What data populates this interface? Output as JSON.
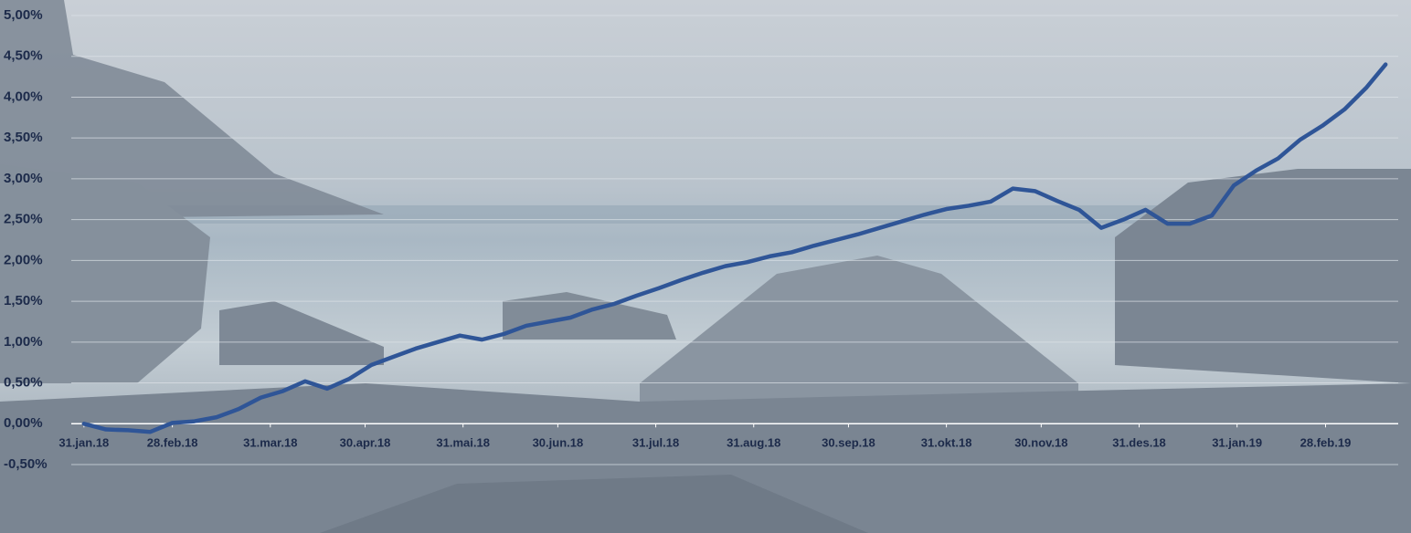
{
  "chart_data": {
    "type": "line",
    "x": [
      "2018-01-31",
      "2018-02-07",
      "2018-02-14",
      "2018-02-21",
      "2018-02-28",
      "2018-03-07",
      "2018-03-14",
      "2018-03-21",
      "2018-03-28",
      "2018-04-04",
      "2018-04-11",
      "2018-04-18",
      "2018-04-25",
      "2018-05-02",
      "2018-05-09",
      "2018-05-16",
      "2018-05-23",
      "2018-05-30",
      "2018-06-06",
      "2018-06-13",
      "2018-06-20",
      "2018-06-27",
      "2018-07-04",
      "2018-07-11",
      "2018-07-18",
      "2018-07-25",
      "2018-08-01",
      "2018-08-08",
      "2018-08-15",
      "2018-08-22",
      "2018-08-29",
      "2018-09-05",
      "2018-09-12",
      "2018-09-19",
      "2018-09-26",
      "2018-10-03",
      "2018-10-10",
      "2018-10-17",
      "2018-10-24",
      "2018-10-31",
      "2018-11-07",
      "2018-11-14",
      "2018-11-21",
      "2018-11-28",
      "2018-12-05",
      "2018-12-12",
      "2018-12-19",
      "2018-12-26",
      "2019-01-02",
      "2019-01-09",
      "2019-01-16",
      "2019-01-23",
      "2019-01-30",
      "2019-02-06",
      "2019-02-13",
      "2019-02-20",
      "2019-02-27",
      "2019-03-06",
      "2019-03-13",
      "2019-03-19"
    ],
    "series": [
      {
        "color": "#2f5597",
        "values": [
          0.0,
          -0.07,
          -0.08,
          -0.1,
          0.01,
          0.03,
          0.08,
          0.18,
          0.32,
          0.4,
          0.52,
          0.43,
          0.55,
          0.72,
          0.82,
          0.92,
          1.0,
          1.08,
          1.03,
          1.1,
          1.2,
          1.25,
          1.3,
          1.4,
          1.47,
          1.57,
          1.66,
          1.76,
          1.85,
          1.93,
          1.98,
          2.05,
          2.1,
          2.18,
          2.25,
          2.32,
          2.4,
          2.48,
          2.56,
          2.63,
          2.67,
          2.72,
          2.88,
          2.85,
          2.73,
          2.62,
          2.4,
          2.5,
          2.62,
          2.45,
          2.45,
          2.55,
          2.92,
          3.1,
          3.25,
          3.48,
          3.65,
          3.85,
          4.12,
          4.4
        ]
      }
    ],
    "xlim": [
      "2018-01-27",
      "2019-03-23"
    ],
    "xticks": [
      {
        "value": "2018-01-31",
        "label": "31.jan.18"
      },
      {
        "value": "2018-02-28",
        "label": "28.feb.18"
      },
      {
        "value": "2018-03-31",
        "label": "31.mar.18"
      },
      {
        "value": "2018-04-30",
        "label": "30.apr.18"
      },
      {
        "value": "2018-05-31",
        "label": "31.mai.18"
      },
      {
        "value": "2018-06-30",
        "label": "30.jun.18"
      },
      {
        "value": "2018-07-31",
        "label": "31.jul.18"
      },
      {
        "value": "2018-08-31",
        "label": "31.aug.18"
      },
      {
        "value": "2018-09-30",
        "label": "30.sep.18"
      },
      {
        "value": "2018-10-31",
        "label": "31.okt.18"
      },
      {
        "value": "2018-11-30",
        "label": "30.nov.18"
      },
      {
        "value": "2018-12-31",
        "label": "31.des.18"
      },
      {
        "value": "2019-01-31",
        "label": "31.jan.19"
      },
      {
        "value": "2019-02-28",
        "label": "28.feb.19"
      }
    ],
    "ylim": [
      -0.5,
      5
    ],
    "yticks": [
      {
        "value": -0.5,
        "label": "-0,50%"
      },
      {
        "value": 0,
        "label": "0,00%"
      },
      {
        "value": 0.5,
        "label": "0,50%"
      },
      {
        "value": 1,
        "label": "1,00%"
      },
      {
        "value": 1.5,
        "label": "1,50%"
      },
      {
        "value": 2,
        "label": "2,00%"
      },
      {
        "value": 2.5,
        "label": "2,50%"
      },
      {
        "value": 3,
        "label": "3,00%"
      },
      {
        "value": 3.5,
        "label": "3,50%"
      },
      {
        "value": 4,
        "label": "4,00%"
      },
      {
        "value": 4.5,
        "label": "4,50%"
      },
      {
        "value": 5,
        "label": "5,00%"
      }
    ],
    "grid": true
  }
}
